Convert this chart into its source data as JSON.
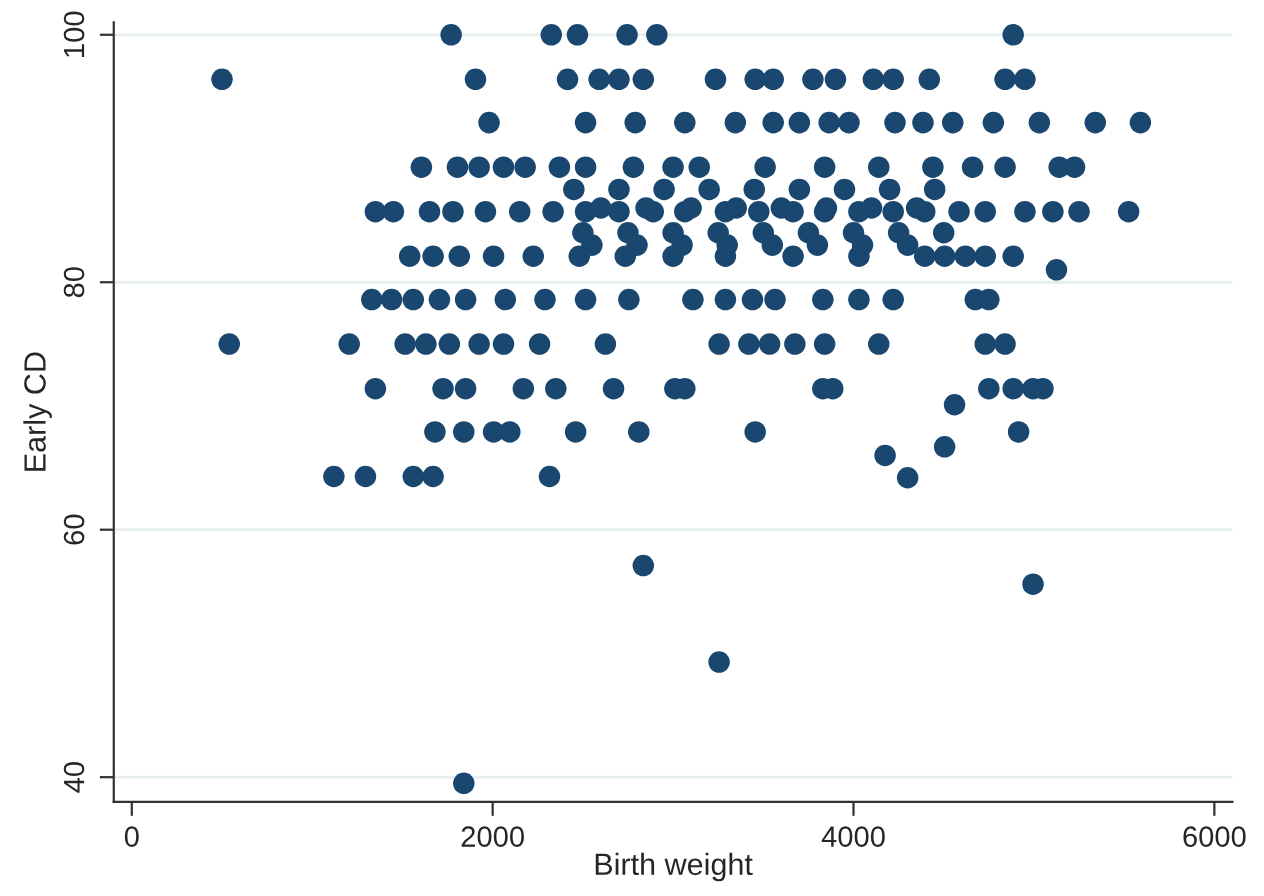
{
  "chart_data": {
    "type": "scatter",
    "xlabel": "Birth weight",
    "ylabel": "Early CD",
    "xlim": [
      -100,
      6100
    ],
    "ylim": [
      38,
      101
    ],
    "xticks": [
      0,
      2000,
      4000,
      6000
    ],
    "yticks": [
      40,
      60,
      80,
      100
    ],
    "grid": "y",
    "marker": "circle",
    "series": [
      {
        "color": "#1a476f",
        "x": [
          1770,
          2325,
          2470,
          2745,
          2910,
          4885,
          500,
          1905,
          2415,
          2590,
          2700,
          2835,
          3235,
          3455,
          3555,
          3775,
          3900,
          4110,
          4220,
          4420,
          4840,
          4950,
          1980,
          2515,
          2790,
          3065,
          3345,
          3555,
          3700,
          3865,
          3975,
          4230,
          4385,
          4550,
          4775,
          5030,
          5340,
          5590,
          1605,
          1805,
          1925,
          2060,
          2180,
          2370,
          2515,
          2780,
          3000,
          3145,
          3510,
          3840,
          4140,
          4440,
          4660,
          4840,
          5140,
          5225,
          1350,
          1450,
          1650,
          1780,
          1960,
          2150,
          2335,
          2515,
          2700,
          2890,
          3065,
          3290,
          3475,
          3665,
          3840,
          4030,
          4220,
          4395,
          4585,
          4730,
          4950,
          5105,
          5250,
          5525,
          1540,
          1670,
          1815,
          2005,
          2225,
          2480,
          2735,
          3000,
          3290,
          3665,
          4030,
          4395,
          4505,
          4620,
          4730,
          4885,
          5125,
          1330,
          1440,
          1560,
          1705,
          1850,
          2070,
          2290,
          2515,
          2755,
          3110,
          3290,
          3440,
          3565,
          3830,
          4030,
          4220,
          4675,
          4750,
          540,
          1205,
          1515,
          1630,
          1760,
          1925,
          2060,
          2260,
          2625,
          3255,
          3420,
          3535,
          3675,
          3840,
          4140,
          4730,
          4840,
          1350,
          1725,
          1850,
          2170,
          2350,
          2670,
          3010,
          3065,
          3830,
          3885,
          4560,
          4750,
          4885,
          4995,
          5050,
          1680,
          1840,
          2005,
          2095,
          2460,
          2810,
          3455,
          4915,
          1120,
          1295,
          1560,
          1670,
          2315,
          4175,
          4505,
          4300,
          2835,
          4995,
          3255,
          1840,
          2500,
          2750,
          3000,
          3250,
          3500,
          3750,
          4000,
          4250,
          4500,
          2600,
          2850,
          3100,
          3350,
          3600,
          3850,
          4100,
          4350,
          2450,
          2700,
          2950,
          3200,
          3450,
          3700,
          3950,
          4200,
          4450,
          2550,
          2800,
          3050,
          3300,
          3550,
          3800,
          4050,
          4300
        ],
        "values": [
          100,
          100,
          100,
          100,
          100,
          100,
          96.4,
          96.4,
          96.4,
          96.4,
          96.4,
          96.4,
          96.4,
          96.4,
          96.4,
          96.4,
          96.4,
          96.4,
          96.4,
          96.4,
          96.4,
          96.4,
          92.9,
          92.9,
          92.9,
          92.9,
          92.9,
          92.9,
          92.9,
          92.9,
          92.9,
          92.9,
          92.9,
          92.9,
          92.9,
          92.9,
          92.9,
          92.9,
          89.3,
          89.3,
          89.3,
          89.3,
          89.3,
          89.3,
          89.3,
          89.3,
          89.3,
          89.3,
          89.3,
          89.3,
          89.3,
          89.3,
          89.3,
          89.3,
          89.3,
          89.3,
          85.7,
          85.7,
          85.7,
          85.7,
          85.7,
          85.7,
          85.7,
          85.7,
          85.7,
          85.7,
          85.7,
          85.7,
          85.7,
          85.7,
          85.7,
          85.7,
          85.7,
          85.7,
          85.7,
          85.7,
          85.7,
          85.7,
          85.7,
          85.7,
          82.1,
          82.1,
          82.1,
          82.1,
          82.1,
          82.1,
          82.1,
          82.1,
          82.1,
          82.1,
          82.1,
          82.1,
          82.1,
          82.1,
          82.1,
          82.1,
          81,
          78.6,
          78.6,
          78.6,
          78.6,
          78.6,
          78.6,
          78.6,
          78.6,
          78.6,
          78.6,
          78.6,
          78.6,
          78.6,
          78.6,
          78.6,
          78.6,
          78.6,
          78.6,
          75,
          75,
          75,
          75,
          75,
          75,
          75,
          75,
          75,
          75,
          75,
          75,
          75,
          75,
          75,
          75,
          75,
          71.4,
          71.4,
          71.4,
          71.4,
          71.4,
          71.4,
          71.4,
          71.4,
          71.4,
          71.4,
          70.1,
          71.4,
          71.4,
          71.4,
          71.4,
          67.9,
          67.9,
          67.9,
          67.9,
          67.9,
          67.9,
          67.9,
          67.9,
          64.3,
          64.3,
          64.3,
          64.3,
          64.3,
          66,
          66.7,
          64.2,
          57.1,
          55.6,
          49.3,
          39.5,
          84,
          84,
          84,
          84,
          84,
          84,
          84,
          84,
          84,
          86,
          86,
          86,
          86,
          86,
          86,
          86,
          86,
          87.5,
          87.5,
          87.5,
          87.5,
          87.5,
          87.5,
          87.5,
          87.5,
          87.5,
          83,
          83,
          83,
          83,
          83,
          83,
          83,
          83
        ]
      }
    ]
  }
}
